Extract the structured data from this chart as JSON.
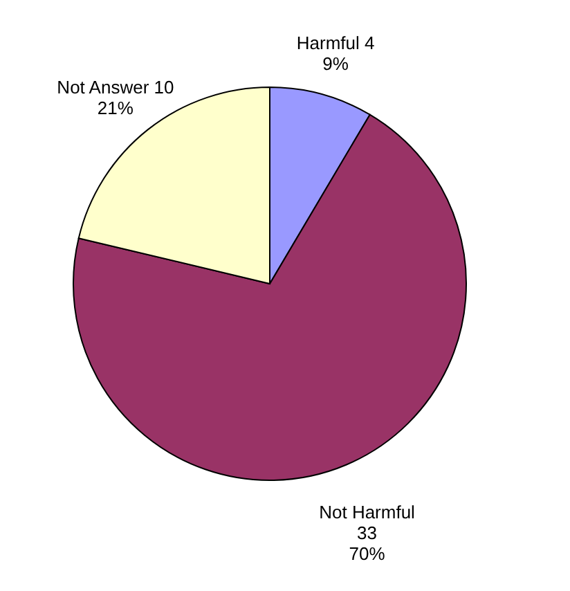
{
  "chart_data": {
    "type": "pie",
    "categories": [
      "Harmful",
      "Not Harmful",
      "Not Answer"
    ],
    "values": [
      4,
      33,
      10
    ],
    "colors": [
      "#9999ff",
      "#993366",
      "#ffffcc"
    ],
    "value_labels": [
      "4\n9%",
      "33\n70%",
      "10\n21%"
    ],
    "legend": false
  }
}
